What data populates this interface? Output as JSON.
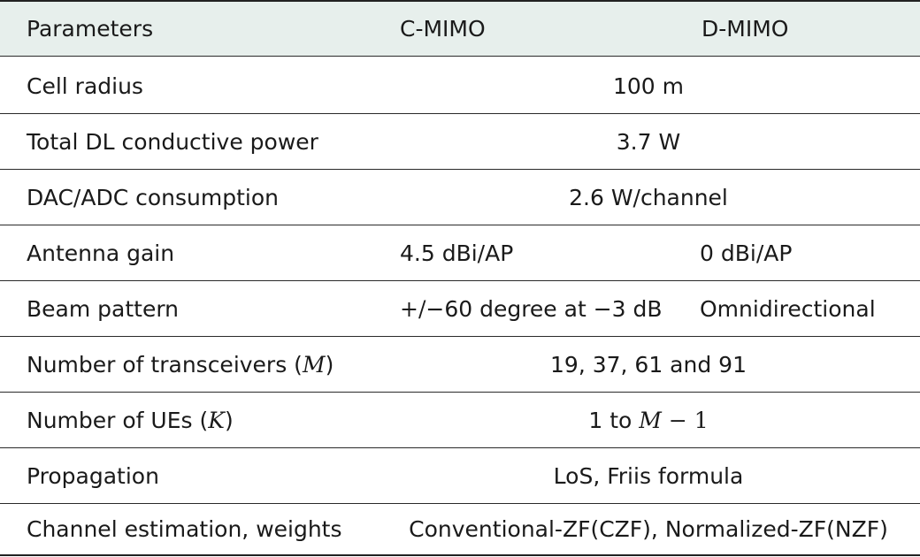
{
  "header": {
    "parameters": "Parameters",
    "c_mimo": "C-MIMO",
    "d_mimo": "D-MIMO"
  },
  "rows": [
    {
      "param": "Cell radius",
      "value": "100 m"
    },
    {
      "param": "Total DL conductive power",
      "value": "3.7 W"
    },
    {
      "param": "DAC/ADC consumption",
      "value": "2.6 W/channel"
    },
    {
      "param": "Antenna gain",
      "c_mimo": "4.5 dBi/AP",
      "d_mimo": "0 dBi/AP"
    },
    {
      "param": "Beam pattern",
      "c_mimo_prefix": "+/",
      "c_mimo": "−60 degree at −3 dB",
      "d_mimo": "Omnidirectional"
    },
    {
      "param_prefix": "Number of transceivers (",
      "param_symbol": "M",
      "param_suffix": ")",
      "value": "19, 37, 61 and 91"
    },
    {
      "param_prefix": "Number of UEs (",
      "param_symbol": "K",
      "param_suffix": ")",
      "value_prefix": "1 to ",
      "value_symbol": "M",
      "value_suffix": " − 1"
    },
    {
      "param": "Propagation",
      "value": "LoS, Friis formula"
    },
    {
      "param": "Channel estimation, weights",
      "value": "Conventional-ZF(CZF), Normalized-ZF(NZF)"
    }
  ]
}
